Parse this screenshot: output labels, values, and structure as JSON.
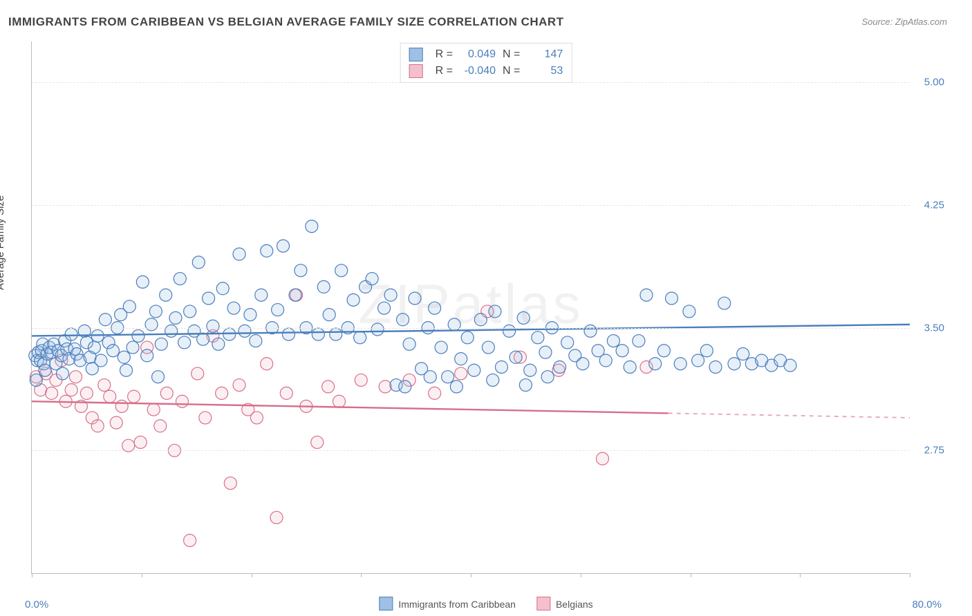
{
  "title": "IMMIGRANTS FROM CARIBBEAN VS BELGIAN AVERAGE FAMILY SIZE CORRELATION CHART",
  "source_prefix": "Source: ",
  "source_name": "ZipAtlas.com",
  "watermark": "ZIPatlas",
  "chart": {
    "type": "scatter",
    "ylabel": "Average Family Size",
    "xlim": [
      0,
      80
    ],
    "ylim": [
      2.0,
      5.25
    ],
    "x_tick_positions": [
      0,
      10,
      20,
      30,
      40,
      50,
      60,
      70,
      80
    ],
    "y_ticks": [
      2.75,
      3.5,
      4.25,
      5.0
    ],
    "x_axis_left_label": "0.0%",
    "x_axis_right_label": "80.0%",
    "background_color": "#ffffff",
    "grid_color": "#e5e5e5",
    "axis_color": "#bbbbbb",
    "label_color": "#444444",
    "tick_label_color": "#4a7ebb",
    "marker_radius": 9,
    "marker_stroke_width": 1.2,
    "marker_fill_opacity": 0.25,
    "trend_line_width": 2.4,
    "series_a": {
      "name": "Immigrants from Caribbean",
      "R": "0.049",
      "N": "147",
      "color_stroke": "#4a7ebb",
      "color_fill": "#9fc0e4",
      "trend_y_at_xmin": 3.45,
      "trend_y_at_xmax": 3.52,
      "trend_solid_to_x": 80,
      "points": [
        [
          0.3,
          3.33
        ],
        [
          0.5,
          3.3
        ],
        [
          0.6,
          3.35
        ],
        [
          0.8,
          3.3
        ],
        [
          0.9,
          3.36
        ],
        [
          1.0,
          3.4
        ],
        [
          1.1,
          3.28
        ],
        [
          1.4,
          3.34
        ],
        [
          1.6,
          3.38
        ],
        [
          1.8,
          3.35
        ],
        [
          2.0,
          3.4
        ],
        [
          2.2,
          3.28
        ],
        [
          2.4,
          3.36
        ],
        [
          2.7,
          3.33
        ],
        [
          3.0,
          3.42
        ],
        [
          3.2,
          3.37
        ],
        [
          3.4,
          3.31
        ],
        [
          3.6,
          3.46
        ],
        [
          3.9,
          3.37
        ],
        [
          4.1,
          3.34
        ],
        [
          4.4,
          3.3
        ],
        [
          4.8,
          3.48
        ],
        [
          5.0,
          3.41
        ],
        [
          5.3,
          3.32
        ],
        [
          5.7,
          3.38
        ],
        [
          6.0,
          3.45
        ],
        [
          6.3,
          3.3
        ],
        [
          6.7,
          3.55
        ],
        [
          7.0,
          3.41
        ],
        [
          7.4,
          3.36
        ],
        [
          7.8,
          3.5
        ],
        [
          8.1,
          3.58
        ],
        [
          8.4,
          3.32
        ],
        [
          8.9,
          3.63
        ],
        [
          9.2,
          3.38
        ],
        [
          9.7,
          3.45
        ],
        [
          10.1,
          3.78
        ],
        [
          10.5,
          3.33
        ],
        [
          10.9,
          3.52
        ],
        [
          11.3,
          3.6
        ],
        [
          11.8,
          3.4
        ],
        [
          12.2,
          3.7
        ],
        [
          12.7,
          3.48
        ],
        [
          13.1,
          3.56
        ],
        [
          13.5,
          3.8
        ],
        [
          13.9,
          3.41
        ],
        [
          14.4,
          3.6
        ],
        [
          14.8,
          3.48
        ],
        [
          15.2,
          3.9
        ],
        [
          15.6,
          3.43
        ],
        [
          16.1,
          3.68
        ],
        [
          16.5,
          3.51
        ],
        [
          17.0,
          3.4
        ],
        [
          17.4,
          3.74
        ],
        [
          18.0,
          3.46
        ],
        [
          18.4,
          3.62
        ],
        [
          18.9,
          3.95
        ],
        [
          19.4,
          3.48
        ],
        [
          19.9,
          3.58
        ],
        [
          20.4,
          3.42
        ],
        [
          20.9,
          3.7
        ],
        [
          21.4,
          3.97
        ],
        [
          21.9,
          3.5
        ],
        [
          22.4,
          3.61
        ],
        [
          22.9,
          4.0
        ],
        [
          23.4,
          3.46
        ],
        [
          24.0,
          3.7
        ],
        [
          24.5,
          3.85
        ],
        [
          25.0,
          3.5
        ],
        [
          25.5,
          4.12
        ],
        [
          26.1,
          3.46
        ],
        [
          26.6,
          3.75
        ],
        [
          27.1,
          3.58
        ],
        [
          27.7,
          3.46
        ],
        [
          28.2,
          3.85
        ],
        [
          28.8,
          3.5
        ],
        [
          29.3,
          3.67
        ],
        [
          29.9,
          3.44
        ],
        [
          30.4,
          3.75
        ],
        [
          31.0,
          3.8
        ],
        [
          31.5,
          3.49
        ],
        [
          32.1,
          3.62
        ],
        [
          32.7,
          3.7
        ],
        [
          33.2,
          3.15
        ],
        [
          33.8,
          3.55
        ],
        [
          34.4,
          3.4
        ],
        [
          34.9,
          3.68
        ],
        [
          35.5,
          3.25
        ],
        [
          36.1,
          3.5
        ],
        [
          36.7,
          3.62
        ],
        [
          37.3,
          3.38
        ],
        [
          37.9,
          3.2
        ],
        [
          38.5,
          3.52
        ],
        [
          39.1,
          3.31
        ],
        [
          39.7,
          3.44
        ],
        [
          40.3,
          3.24
        ],
        [
          40.9,
          3.55
        ],
        [
          41.6,
          3.38
        ],
        [
          42.2,
          3.6
        ],
        [
          42.8,
          3.26
        ],
        [
          43.5,
          3.48
        ],
        [
          44.1,
          3.32
        ],
        [
          44.8,
          3.56
        ],
        [
          45.4,
          3.24
        ],
        [
          46.1,
          3.44
        ],
        [
          46.8,
          3.35
        ],
        [
          47.4,
          3.5
        ],
        [
          48.1,
          3.26
        ],
        [
          48.8,
          3.41
        ],
        [
          49.5,
          3.33
        ],
        [
          50.2,
          3.28
        ],
        [
          50.9,
          3.48
        ],
        [
          51.6,
          3.36
        ],
        [
          52.3,
          3.3
        ],
        [
          53.0,
          3.42
        ],
        [
          53.8,
          3.36
        ],
        [
          54.5,
          3.26
        ],
        [
          55.3,
          3.42
        ],
        [
          56.0,
          3.7
        ],
        [
          56.8,
          3.28
        ],
        [
          57.6,
          3.36
        ],
        [
          58.3,
          3.68
        ],
        [
          59.1,
          3.28
        ],
        [
          59.9,
          3.6
        ],
        [
          60.7,
          3.3
        ],
        [
          61.5,
          3.36
        ],
        [
          62.3,
          3.26
        ],
        [
          63.1,
          3.65
        ],
        [
          64.0,
          3.28
        ],
        [
          64.8,
          3.34
        ],
        [
          65.6,
          3.28
        ],
        [
          66.5,
          3.3
        ],
        [
          67.4,
          3.27
        ],
        [
          68.2,
          3.3
        ],
        [
          69.1,
          3.27
        ],
        [
          0.4,
          3.18
        ],
        [
          1.2,
          3.24
        ],
        [
          2.8,
          3.22
        ],
        [
          5.5,
          3.25
        ],
        [
          8.6,
          3.24
        ],
        [
          11.5,
          3.2
        ],
        [
          34.0,
          3.14
        ],
        [
          36.3,
          3.2
        ],
        [
          38.7,
          3.14
        ],
        [
          42.0,
          3.18
        ],
        [
          45.0,
          3.15
        ],
        [
          47.0,
          3.2
        ]
      ]
    },
    "series_b": {
      "name": "Belgians",
      "R": "-0.040",
      "N": "53",
      "color_stroke": "#d66f8b",
      "color_fill": "#f4c0cd",
      "trend_y_at_xmin": 3.05,
      "trend_y_at_xmax": 2.95,
      "trend_solid_to_x": 58,
      "points": [
        [
          0.4,
          3.2
        ],
        [
          0.8,
          3.12
        ],
        [
          1.3,
          3.22
        ],
        [
          1.8,
          3.1
        ],
        [
          2.2,
          3.18
        ],
        [
          2.7,
          3.3
        ],
        [
          3.1,
          3.05
        ],
        [
          3.6,
          3.12
        ],
        [
          4.0,
          3.2
        ],
        [
          4.5,
          3.02
        ],
        [
          5.0,
          3.1
        ],
        [
          5.5,
          2.95
        ],
        [
          6.0,
          2.9
        ],
        [
          6.6,
          3.15
        ],
        [
          7.1,
          3.08
        ],
        [
          7.7,
          2.92
        ],
        [
          8.2,
          3.02
        ],
        [
          8.8,
          2.78
        ],
        [
          9.3,
          3.08
        ],
        [
          9.9,
          2.8
        ],
        [
          10.5,
          3.38
        ],
        [
          11.1,
          3.0
        ],
        [
          11.7,
          2.9
        ],
        [
          12.3,
          3.1
        ],
        [
          13.0,
          2.75
        ],
        [
          13.7,
          3.05
        ],
        [
          14.4,
          2.2
        ],
        [
          15.1,
          3.22
        ],
        [
          15.8,
          2.95
        ],
        [
          16.5,
          3.45
        ],
        [
          17.3,
          3.1
        ],
        [
          18.1,
          2.55
        ],
        [
          18.9,
          3.15
        ],
        [
          19.7,
          3.0
        ],
        [
          20.5,
          2.95
        ],
        [
          21.4,
          3.28
        ],
        [
          22.3,
          2.34
        ],
        [
          23.2,
          3.1
        ],
        [
          24.1,
          3.7
        ],
        [
          25.0,
          3.02
        ],
        [
          26.0,
          2.8
        ],
        [
          27.0,
          3.14
        ],
        [
          28.0,
          3.05
        ],
        [
          30.0,
          3.18
        ],
        [
          32.2,
          3.14
        ],
        [
          34.4,
          3.18
        ],
        [
          36.7,
          3.1
        ],
        [
          39.1,
          3.22
        ],
        [
          41.5,
          3.6
        ],
        [
          44.5,
          3.32
        ],
        [
          48.0,
          3.24
        ],
        [
          52.0,
          2.7
        ],
        [
          56.0,
          3.26
        ]
      ]
    }
  },
  "legend_top_labels": {
    "R": "R =",
    "N": "N ="
  },
  "legend_bottom": {
    "a": "Immigrants from Caribbean",
    "b": "Belgians"
  }
}
